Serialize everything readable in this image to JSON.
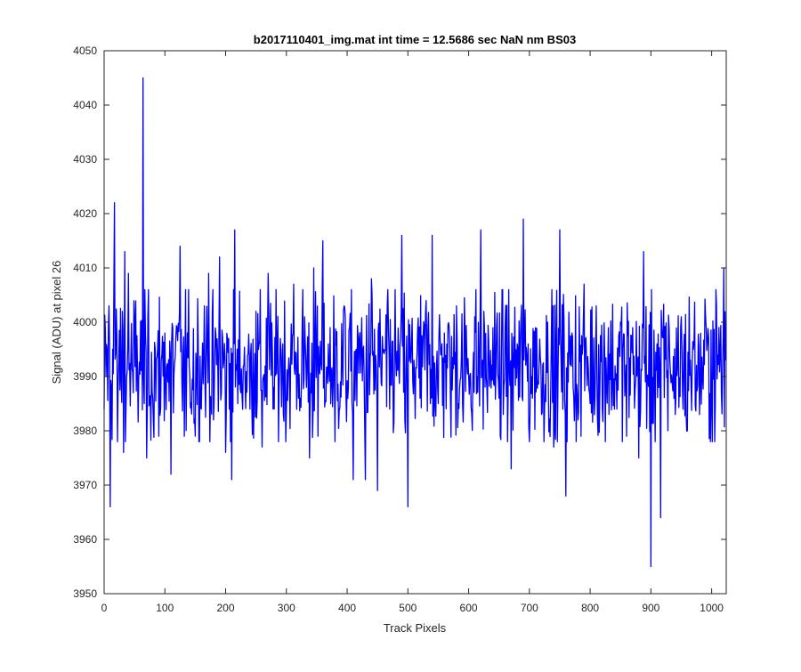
{
  "chart_data": {
    "type": "line",
    "title": "b2017110401_img.mat int time = 12.5686 sec  NaN nm BS03",
    "xlabel": "Track Pixels",
    "ylabel": "Signal (ADU) at pixel 26",
    "xlim": [
      0,
      1024
    ],
    "ylim": [
      3950,
      4050
    ],
    "xticks": [
      0,
      100,
      200,
      300,
      400,
      500,
      600,
      700,
      800,
      900,
      1000
    ],
    "yticks": [
      3950,
      3960,
      3970,
      3980,
      3990,
      4000,
      4010,
      4020,
      4030,
      4040,
      4050
    ],
    "grid": false,
    "box": true,
    "series": [
      {
        "color": "#0000ff",
        "mean": 3992,
        "std": 7,
        "n_points": 1024,
        "points": [
          [
            0,
            3984
          ],
          [
            8,
            4003
          ],
          [
            10,
            3966
          ],
          [
            16,
            4006
          ],
          [
            17,
            4022
          ],
          [
            22,
            3978
          ],
          [
            30,
            4002
          ],
          [
            32,
            3976
          ],
          [
            34,
            4013
          ],
          [
            36,
            3984
          ],
          [
            40,
            4009
          ],
          [
            48,
            3987
          ],
          [
            64,
            4045
          ],
          [
            66,
            3985
          ],
          [
            70,
            3975
          ],
          [
            72,
            4001
          ],
          [
            80,
            3986
          ],
          [
            90,
            3979
          ],
          [
            100,
            3998
          ],
          [
            105,
            3989
          ],
          [
            110,
            3972
          ],
          [
            120,
            3999
          ],
          [
            125,
            4014
          ],
          [
            132,
            3979
          ],
          [
            140,
            3992
          ],
          [
            150,
            3979
          ],
          [
            155,
            3995
          ],
          [
            165,
            4003
          ],
          [
            172,
            4009
          ],
          [
            180,
            3982
          ],
          [
            190,
            4012
          ],
          [
            200,
            3976
          ],
          [
            205,
            3997
          ],
          [
            210,
            3971
          ],
          [
            215,
            4017
          ],
          [
            220,
            3985
          ],
          [
            230,
            3992
          ],
          [
            240,
            3984
          ],
          [
            250,
            4002
          ],
          [
            260,
            3977
          ],
          [
            270,
            4009
          ],
          [
            280,
            3984
          ],
          [
            290,
            3997
          ],
          [
            300,
            3984
          ],
          [
            312,
            4007
          ],
          [
            320,
            3986
          ],
          [
            330,
            4001
          ],
          [
            338,
            3975
          ],
          [
            345,
            4010
          ],
          [
            352,
            3979
          ],
          [
            360,
            4015
          ],
          [
            370,
            3991
          ],
          [
            380,
            3978
          ],
          [
            395,
            4003
          ],
          [
            410,
            3971
          ],
          [
            420,
            3997
          ],
          [
            430,
            3971
          ],
          [
            440,
            4008
          ],
          [
            450,
            3969
          ],
          [
            460,
            3995
          ],
          [
            470,
            3984
          ],
          [
            480,
            3993
          ],
          [
            490,
            4016
          ],
          [
            495,
            3982
          ],
          [
            500,
            3966
          ],
          [
            510,
            3993
          ],
          [
            520,
            3986
          ],
          [
            530,
            4004
          ],
          [
            540,
            4016
          ],
          [
            550,
            3985
          ],
          [
            560,
            3998
          ],
          [
            570,
            3986
          ],
          [
            580,
            4003
          ],
          [
            590,
            3985
          ],
          [
            600,
            3990
          ],
          [
            610,
            4001
          ],
          [
            620,
            4017
          ],
          [
            630,
            3988
          ],
          [
            640,
            3999
          ],
          [
            650,
            3986
          ],
          [
            660,
            3999
          ],
          [
            670,
            3973
          ],
          [
            680,
            3996
          ],
          [
            690,
            4019
          ],
          [
            700,
            3978
          ],
          [
            710,
            3999
          ],
          [
            720,
            3983
          ],
          [
            730,
            4000
          ],
          [
            740,
            3977
          ],
          [
            750,
            4017
          ],
          [
            760,
            3968
          ],
          [
            770,
            3998
          ],
          [
            780,
            3982
          ],
          [
            790,
            4007
          ],
          [
            800,
            3985
          ],
          [
            810,
            4003
          ],
          [
            820,
            3984
          ],
          [
            830,
            3999
          ],
          [
            840,
            3984
          ],
          [
            850,
            4000
          ],
          [
            860,
            3979
          ],
          [
            870,
            3999
          ],
          [
            880,
            3975
          ],
          [
            888,
            4013
          ],
          [
            895,
            3990
          ],
          [
            900,
            3955
          ],
          [
            910,
            3996
          ],
          [
            916,
            3964
          ],
          [
            930,
            3999
          ],
          [
            940,
            3983
          ],
          [
            950,
            4001
          ],
          [
            960,
            3980
          ],
          [
            970,
            3995
          ],
          [
            980,
            3983
          ],
          [
            990,
            4001
          ],
          [
            1000,
            3984
          ],
          [
            1008,
            4003
          ],
          [
            1016,
            3987
          ],
          [
            1020,
            4010
          ],
          [
            1023,
            3993
          ]
        ]
      }
    ]
  }
}
